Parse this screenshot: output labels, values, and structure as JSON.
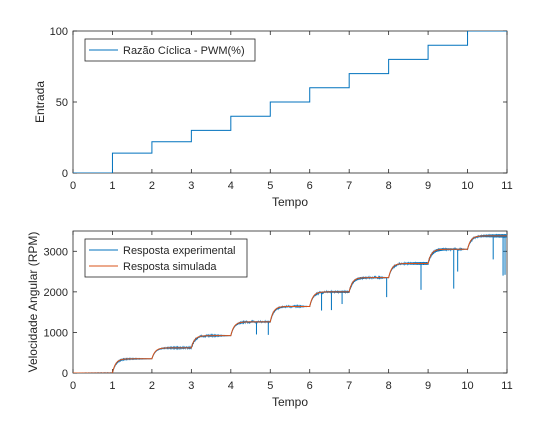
{
  "chart_data": [
    {
      "type": "line",
      "xlabel": "Tempo",
      "ylabel": "Entrada",
      "xlim": [
        0,
        11
      ],
      "ylim": [
        0,
        100
      ],
      "xticks": [
        "0",
        "1",
        "2",
        "3",
        "4",
        "5",
        "6",
        "7",
        "8",
        "9",
        "10",
        "11"
      ],
      "yticks": [
        "0",
        "50",
        "100"
      ],
      "grid": false,
      "legend_position": "top-left",
      "series": [
        {
          "name": "Razão Cíclica - PWM(%)",
          "color": "#0072BD",
          "x": [
            0,
            1,
            1,
            2,
            2,
            3,
            3,
            4,
            4,
            5,
            5,
            6,
            6,
            7,
            7,
            8,
            8,
            9,
            9,
            10,
            10,
            11
          ],
          "y": [
            0,
            0,
            14,
            14,
            22,
            22,
            30,
            30,
            40,
            40,
            50,
            50,
            60,
            60,
            70,
            70,
            80,
            80,
            90,
            90,
            100,
            100
          ]
        }
      ]
    },
    {
      "type": "line",
      "xlabel": "Tempo",
      "ylabel": "Velocidade Angular (RPM)",
      "xlim": [
        0,
        11
      ],
      "ylim": [
        0,
        3500
      ],
      "xticks": [
        "0",
        "1",
        "2",
        "3",
        "4",
        "5",
        "6",
        "7",
        "8",
        "9",
        "10",
        "11"
      ],
      "yticks": [
        "0",
        "1000",
        "2000",
        "3000"
      ],
      "grid": false,
      "legend_position": "top-left",
      "series": [
        {
          "name": "Resposta experimental",
          "color": "#0072BD",
          "steps": [
            {
              "t0": 0,
              "v0": 0,
              "v1": 0
            },
            {
              "t0": 1,
              "v0": 0,
              "v1": 350
            },
            {
              "t0": 2,
              "v0": 350,
              "v1": 620
            },
            {
              "t0": 3,
              "v0": 620,
              "v1": 920
            },
            {
              "t0": 4,
              "v0": 920,
              "v1": 1260
            },
            {
              "t0": 5,
              "v0": 1260,
              "v1": 1640
            },
            {
              "t0": 6,
              "v0": 1640,
              "v1": 2000
            },
            {
              "t0": 7,
              "v0": 2000,
              "v1": 2350
            },
            {
              "t0": 8,
              "v0": 2350,
              "v1": 2700
            },
            {
              "t0": 9,
              "v0": 2700,
              "v1": 3050
            },
            {
              "t0": 10,
              "v0": 3050,
              "v1": 3380
            }
          ],
          "spikes": [
            {
              "t": 4.65,
              "v": 950
            },
            {
              "t": 4.95,
              "v": 940
            },
            {
              "t": 6.3,
              "v": 1540
            },
            {
              "t": 6.55,
              "v": 1550
            },
            {
              "t": 6.82,
              "v": 1700
            },
            {
              "t": 7.95,
              "v": 1870
            },
            {
              "t": 8.82,
              "v": 2050
            },
            {
              "t": 9.65,
              "v": 2080
            },
            {
              "t": 9.75,
              "v": 2500
            },
            {
              "t": 10.65,
              "v": 2800
            },
            {
              "t": 10.9,
              "v": 2400
            },
            {
              "t": 10.95,
              "v": 2420
            }
          ]
        },
        {
          "name": "Resposta simulada",
          "color": "#D95319",
          "steps": [
            {
              "t0": 0,
              "v0": 0,
              "v1": 0
            },
            {
              "t0": 1,
              "v0": 0,
              "v1": 350
            },
            {
              "t0": 2,
              "v0": 350,
              "v1": 620
            },
            {
              "t0": 3,
              "v0": 620,
              "v1": 920
            },
            {
              "t0": 4,
              "v0": 920,
              "v1": 1260
            },
            {
              "t0": 5,
              "v0": 1260,
              "v1": 1640
            },
            {
              "t0": 6,
              "v0": 1640,
              "v1": 2000
            },
            {
              "t0": 7,
              "v0": 2000,
              "v1": 2350
            },
            {
              "t0": 8,
              "v0": 2350,
              "v1": 2700
            },
            {
              "t0": 9,
              "v0": 2700,
              "v1": 3050
            },
            {
              "t0": 10,
              "v0": 3050,
              "v1": 3380
            }
          ]
        }
      ]
    }
  ]
}
